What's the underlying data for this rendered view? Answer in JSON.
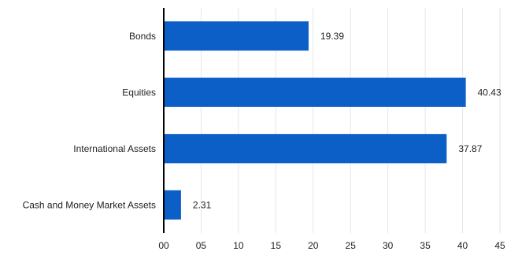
{
  "chart_data": {
    "type": "bar",
    "orientation": "horizontal",
    "title": "",
    "xlabel": "",
    "ylabel": "",
    "categories": [
      "Bonds",
      "Equities",
      "International Assets",
      "Cash and Money Market Assets"
    ],
    "values": [
      19.39,
      40.43,
      37.87,
      2.31
    ],
    "value_labels": [
      "19.39",
      "40.43",
      "37.87",
      "2.31"
    ],
    "xlim": [
      0,
      45
    ],
    "x_ticks": [
      0,
      5,
      10,
      15,
      20,
      25,
      30,
      35,
      40,
      45
    ],
    "x_tick_labels": [
      "00",
      "05",
      "10",
      "15",
      "20",
      "25",
      "30",
      "35",
      "40",
      "45"
    ],
    "grid": true,
    "legend": "none",
    "bar_color": "#0d5fc8"
  }
}
